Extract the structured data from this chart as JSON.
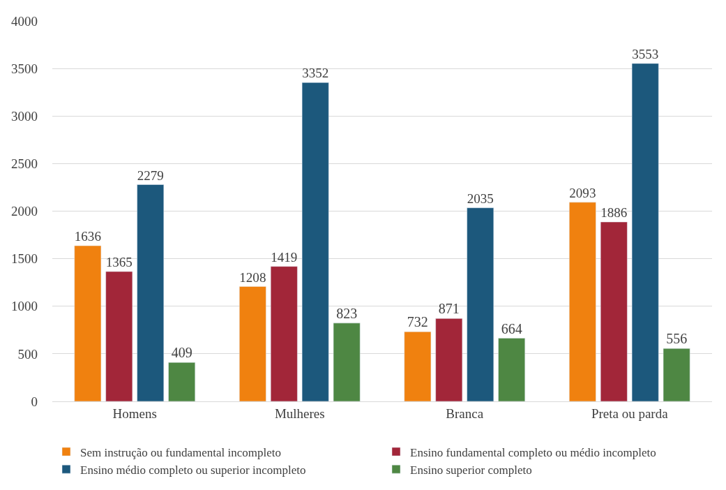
{
  "chart_data": {
    "type": "bar",
    "categories": [
      "Homens",
      "Mulheres",
      "Branca",
      "Preta ou parda"
    ],
    "series": [
      {
        "name": "Sem instrução ou fundamental incompleto",
        "color": "#f0810f",
        "values": [
          1636,
          1208,
          732,
          2093
        ]
      },
      {
        "name": "Ensino fundamental completo ou médio incompleto",
        "color": "#a22639",
        "values": [
          1365,
          1419,
          871,
          1886
        ]
      },
      {
        "name": "Ensino médio completo ou superior incompleto",
        "color": "#1c587c",
        "values": [
          2279,
          3352,
          2035,
          3553
        ]
      },
      {
        "name": "Ensino superior completo",
        "color": "#4e8743",
        "values": [
          409,
          823,
          664,
          556
        ]
      }
    ],
    "ylim": [
      0,
      4000
    ],
    "yticks": [
      0,
      500,
      1000,
      1500,
      2000,
      2500,
      3000,
      3500,
      4000
    ],
    "grid": "y",
    "legend": "bottom",
    "data_labels": true
  }
}
